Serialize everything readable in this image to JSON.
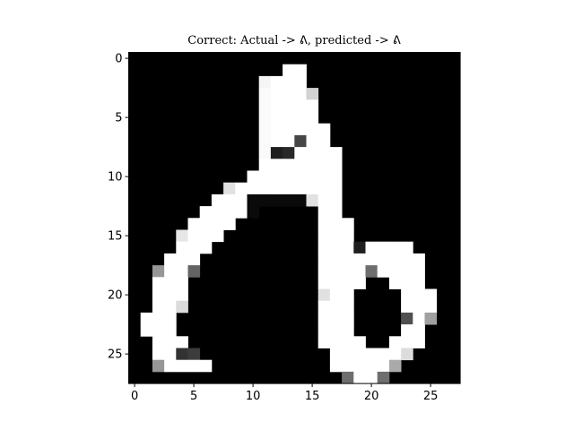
{
  "chart_data": {
    "type": "heatmap",
    "title": "Correct: Actual -> ᕕ, predicted -> ᕕ",
    "xlabel": "",
    "ylabel": "",
    "colormap": "gray",
    "value_range": [
      0,
      255
    ],
    "xlim": [
      -0.5,
      27.5
    ],
    "ylim": [
      27.5,
      -0.5
    ],
    "xticks": [
      0,
      5,
      10,
      15,
      20,
      25
    ],
    "yticks": [
      0,
      5,
      10,
      15,
      20,
      25
    ],
    "grid": false,
    "rows": 28,
    "cols": 28,
    "pixels": [
      [
        0,
        0,
        0,
        0,
        0,
        0,
        0,
        0,
        0,
        0,
        0,
        0,
        0,
        0,
        0,
        0,
        0,
        0,
        0,
        0,
        0,
        0,
        0,
        0,
        0,
        0,
        0,
        0
      ],
      [
        0,
        0,
        0,
        0,
        0,
        0,
        0,
        0,
        0,
        0,
        0,
        0,
        0,
        255,
        255,
        0,
        0,
        0,
        0,
        0,
        0,
        0,
        0,
        0,
        0,
        0,
        0,
        0
      ],
      [
        0,
        0,
        0,
        0,
        0,
        0,
        0,
        0,
        0,
        0,
        0,
        245,
        255,
        255,
        255,
        0,
        0,
        0,
        0,
        0,
        0,
        0,
        0,
        0,
        0,
        0,
        0,
        0
      ],
      [
        0,
        0,
        0,
        0,
        0,
        0,
        0,
        0,
        0,
        0,
        0,
        250,
        255,
        255,
        255,
        210,
        0,
        0,
        0,
        0,
        0,
        0,
        0,
        0,
        0,
        0,
        0,
        0
      ],
      [
        0,
        0,
        0,
        0,
        0,
        0,
        0,
        0,
        0,
        0,
        0,
        250,
        255,
        255,
        255,
        255,
        0,
        0,
        0,
        0,
        0,
        0,
        0,
        0,
        0,
        0,
        0,
        0
      ],
      [
        0,
        0,
        0,
        0,
        0,
        0,
        0,
        0,
        0,
        0,
        0,
        250,
        255,
        255,
        255,
        255,
        0,
        0,
        0,
        0,
        0,
        0,
        0,
        0,
        0,
        0,
        0,
        0
      ],
      [
        0,
        0,
        0,
        0,
        0,
        0,
        0,
        0,
        0,
        0,
        0,
        250,
        255,
        255,
        255,
        255,
        255,
        0,
        0,
        0,
        0,
        0,
        0,
        0,
        0,
        0,
        0,
        0
      ],
      [
        0,
        0,
        0,
        0,
        0,
        0,
        0,
        0,
        0,
        0,
        0,
        250,
        255,
        255,
        70,
        255,
        255,
        0,
        0,
        0,
        0,
        0,
        0,
        0,
        0,
        0,
        0,
        0
      ],
      [
        0,
        0,
        0,
        0,
        0,
        0,
        0,
        0,
        0,
        0,
        0,
        250,
        30,
        40,
        255,
        255,
        255,
        255,
        0,
        0,
        0,
        0,
        0,
        0,
        0,
        0,
        0,
        0
      ],
      [
        0,
        0,
        0,
        0,
        0,
        0,
        0,
        0,
        0,
        0,
        0,
        255,
        255,
        255,
        255,
        255,
        255,
        255,
        0,
        0,
        0,
        0,
        0,
        0,
        0,
        0,
        0,
        0
      ],
      [
        0,
        0,
        0,
        0,
        0,
        0,
        0,
        0,
        0,
        0,
        255,
        255,
        255,
        255,
        255,
        255,
        255,
        255,
        0,
        0,
        0,
        0,
        0,
        0,
        0,
        0,
        0,
        0
      ],
      [
        0,
        0,
        0,
        0,
        0,
        0,
        0,
        0,
        225,
        255,
        255,
        255,
        255,
        255,
        255,
        255,
        255,
        255,
        0,
        0,
        0,
        0,
        0,
        0,
        0,
        0,
        0,
        0
      ],
      [
        0,
        0,
        0,
        0,
        0,
        0,
        0,
        255,
        255,
        255,
        10,
        10,
        10,
        10,
        10,
        225,
        255,
        255,
        0,
        0,
        0,
        0,
        0,
        0,
        0,
        0,
        0,
        0
      ],
      [
        0,
        0,
        0,
        0,
        0,
        0,
        255,
        255,
        255,
        255,
        10,
        0,
        0,
        0,
        0,
        0,
        255,
        255,
        0,
        0,
        0,
        0,
        0,
        0,
        0,
        0,
        0,
        0
      ],
      [
        0,
        0,
        0,
        0,
        0,
        255,
        255,
        255,
        255,
        0,
        0,
        0,
        0,
        0,
        0,
        0,
        255,
        255,
        255,
        0,
        0,
        0,
        0,
        0,
        0,
        0,
        0,
        0
      ],
      [
        0,
        0,
        0,
        0,
        230,
        255,
        255,
        255,
        0,
        0,
        0,
        0,
        0,
        0,
        0,
        0,
        255,
        255,
        255,
        0,
        0,
        0,
        0,
        0,
        0,
        0,
        0,
        0
      ],
      [
        0,
        0,
        0,
        0,
        255,
        255,
        255,
        0,
        0,
        0,
        0,
        0,
        0,
        0,
        0,
        0,
        255,
        255,
        255,
        30,
        255,
        255,
        255,
        255,
        0,
        0,
        0,
        0
      ],
      [
        0,
        0,
        0,
        255,
        255,
        255,
        0,
        0,
        0,
        0,
        0,
        0,
        0,
        0,
        0,
        0,
        255,
        255,
        255,
        255,
        255,
        255,
        255,
        255,
        255,
        0,
        0,
        0
      ],
      [
        0,
        0,
        150,
        255,
        255,
        100,
        0,
        0,
        0,
        0,
        0,
        0,
        0,
        0,
        0,
        0,
        255,
        255,
        255,
        255,
        110,
        255,
        255,
        255,
        255,
        0,
        0,
        0
      ],
      [
        0,
        0,
        255,
        255,
        255,
        0,
        0,
        0,
        0,
        0,
        0,
        0,
        0,
        0,
        0,
        0,
        255,
        255,
        255,
        255,
        0,
        0,
        255,
        255,
        255,
        0,
        0,
        0
      ],
      [
        0,
        0,
        255,
        255,
        255,
        0,
        0,
        0,
        0,
        0,
        0,
        0,
        0,
        0,
        0,
        0,
        225,
        255,
        255,
        0,
        0,
        0,
        0,
        255,
        255,
        255,
        0,
        0
      ],
      [
        0,
        0,
        255,
        255,
        220,
        0,
        0,
        0,
        0,
        0,
        0,
        0,
        0,
        0,
        0,
        0,
        255,
        255,
        255,
        0,
        0,
        0,
        0,
        255,
        255,
        255,
        0,
        0
      ],
      [
        0,
        255,
        255,
        255,
        0,
        0,
        0,
        0,
        0,
        0,
        0,
        0,
        0,
        0,
        0,
        0,
        255,
        255,
        255,
        0,
        0,
        0,
        0,
        80,
        255,
        160,
        0,
        0
      ],
      [
        0,
        255,
        255,
        255,
        0,
        0,
        0,
        0,
        0,
        0,
        0,
        0,
        0,
        0,
        0,
        0,
        255,
        255,
        255,
        0,
        0,
        0,
        0,
        255,
        255,
        0,
        0,
        0
      ],
      [
        0,
        0,
        255,
        255,
        255,
        0,
        0,
        0,
        0,
        0,
        0,
        0,
        0,
        0,
        0,
        0,
        255,
        255,
        255,
        255,
        0,
        0,
        255,
        255,
        255,
        0,
        0,
        0
      ],
      [
        0,
        0,
        255,
        255,
        50,
        60,
        0,
        0,
        0,
        0,
        0,
        0,
        0,
        0,
        0,
        0,
        0,
        255,
        255,
        255,
        255,
        255,
        255,
        220,
        0,
        0,
        0,
        0
      ],
      [
        0,
        0,
        150,
        255,
        255,
        255,
        255,
        0,
        0,
        0,
        0,
        0,
        0,
        0,
        0,
        0,
        0,
        255,
        255,
        255,
        255,
        255,
        170,
        0,
        0,
        0,
        0,
        0
      ],
      [
        0,
        0,
        0,
        0,
        0,
        0,
        0,
        0,
        0,
        0,
        0,
        0,
        0,
        0,
        0,
        0,
        0,
        0,
        110,
        255,
        255,
        110,
        0,
        0,
        0,
        0,
        0,
        0
      ]
    ]
  }
}
